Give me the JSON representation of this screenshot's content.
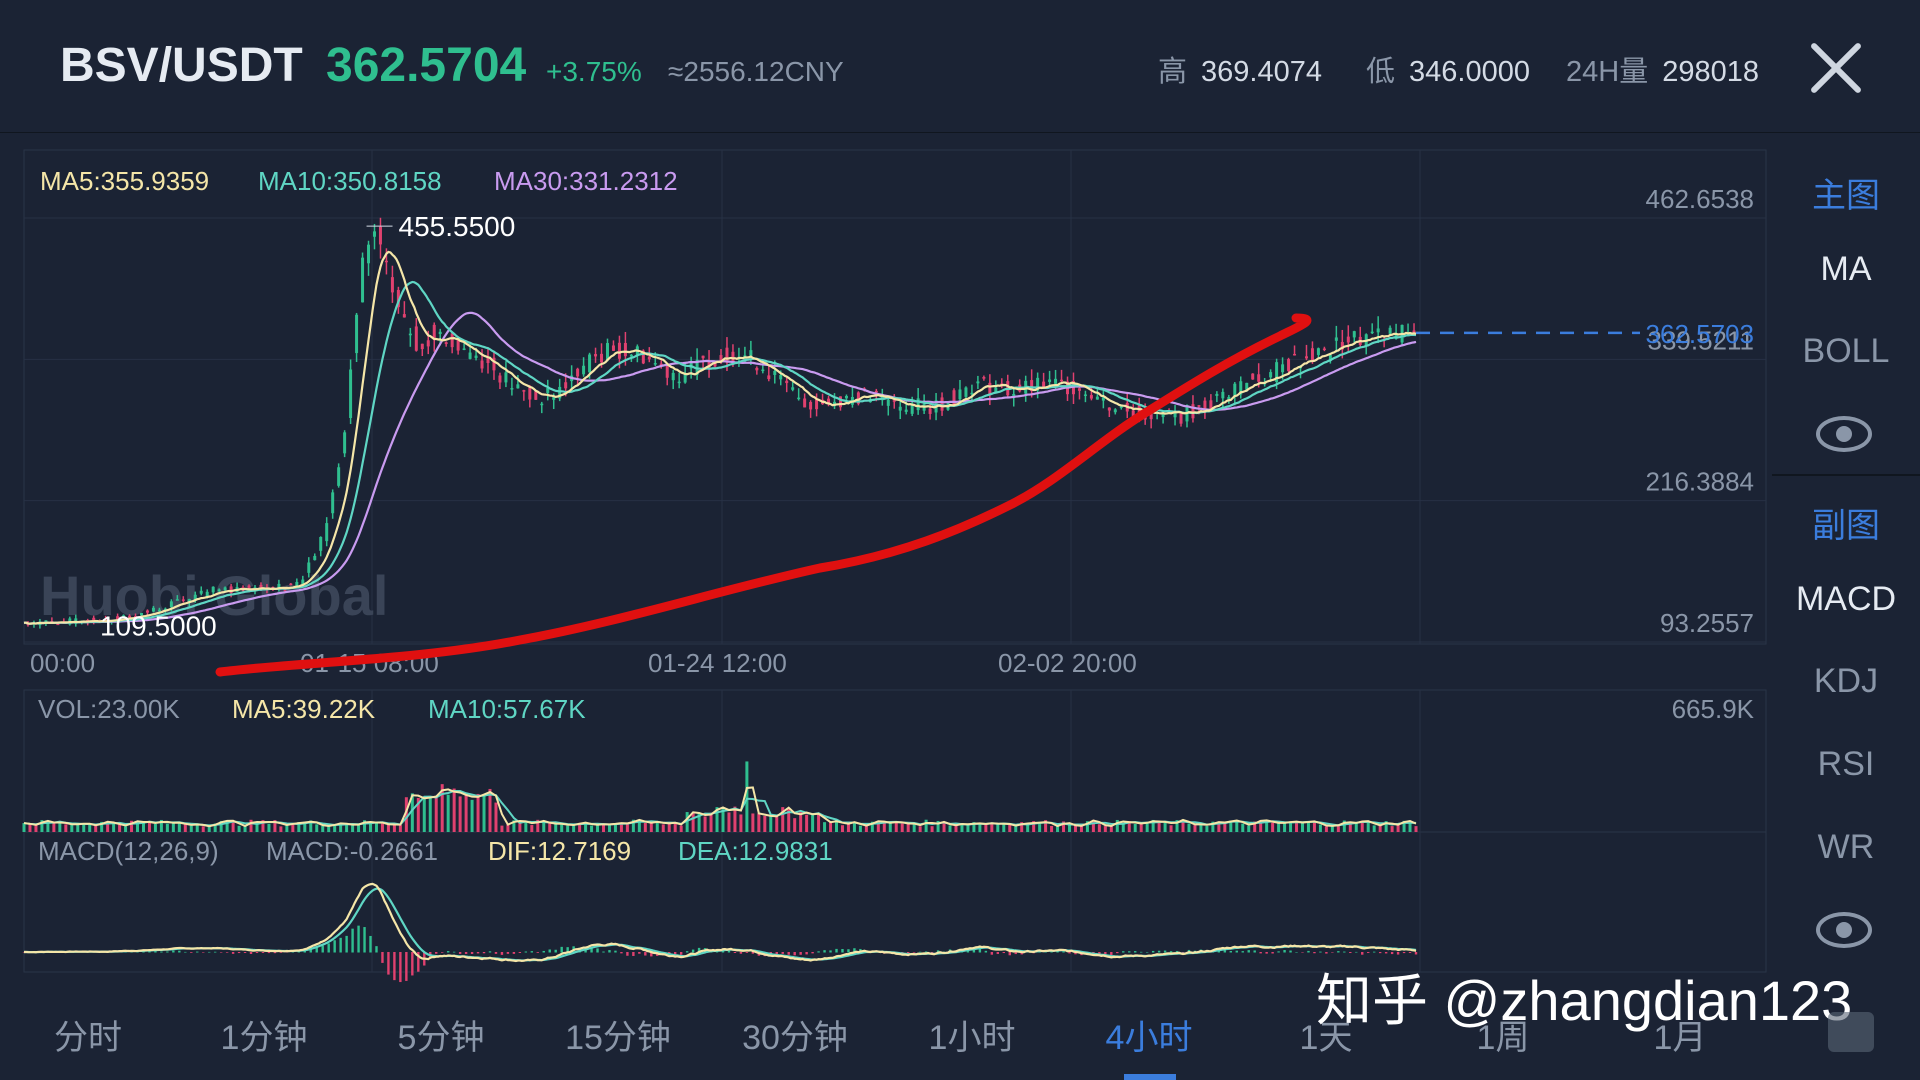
{
  "header": {
    "pair": "BSV/USDT",
    "price": "362.5704",
    "change": "+3.75%",
    "cny": "≈2556.12CNY",
    "high_label": "高",
    "high": "369.4074",
    "low_label": "低",
    "low": "346.0000",
    "vol_label": "24H量",
    "vol": "298018",
    "close_icon": "close-icon"
  },
  "colors": {
    "up": "#2fbf8f",
    "down": "#e0416f",
    "ma5": "#f5e6a8",
    "ma10": "#5fd6c4",
    "ma30": "#c99bf0",
    "accent": "#3b7ddd",
    "annotation": "#e01010"
  },
  "sidebar": {
    "main_header": "主图",
    "main_items": [
      "MA",
      "BOLL"
    ],
    "sub_header": "副图",
    "sub_items": [
      "MACD",
      "KDJ",
      "RSI",
      "WR"
    ],
    "eye_icon": "eye-icon"
  },
  "timeframes": [
    "分时",
    "1分钟",
    "5分钟",
    "15分钟",
    "30分钟",
    "1小时",
    "4小时",
    "1天",
    "1周",
    "1月"
  ],
  "active_timeframe": "4小时",
  "watermark": "知乎 @zhangdian123",
  "chart_data": [
    {
      "type": "candlestick",
      "legend": [
        {
          "label": "MA5:355.9359",
          "color": "#f5e6a8"
        },
        {
          "label": "MA10:350.8158",
          "color": "#5fd6c4"
        },
        {
          "label": "MA30:331.2312",
          "color": "#c99bf0"
        }
      ],
      "y_ticks": [
        "462.6538",
        "339.5211",
        "216.3884",
        "93.2557"
      ],
      "y_tick_values": [
        462.6538,
        339.5211,
        216.3884,
        93.2557
      ],
      "x_ticks": [
        "00:00",
        "01-15 08:00",
        "01-24 12:00",
        "02-02 20:00"
      ],
      "last_price": "362.5703",
      "max_label": "455.5500",
      "min_label": "109.5000",
      "brand": "Huobi Global",
      "close_path": [
        [
          0,
          110
        ],
        [
          40,
          112
        ],
        [
          60,
          118
        ],
        [
          80,
          130
        ],
        [
          95,
          138
        ],
        [
          110,
          140
        ],
        [
          130,
          142
        ],
        [
          140,
          148
        ],
        [
          150,
          185
        ],
        [
          160,
          260
        ],
        [
          165,
          345
        ],
        [
          170,
          420
        ],
        [
          176,
          450
        ],
        [
          182,
          415
        ],
        [
          190,
          375
        ],
        [
          198,
          350
        ],
        [
          206,
          365
        ],
        [
          215,
          352
        ],
        [
          225,
          345
        ],
        [
          235,
          333
        ],
        [
          245,
          318
        ],
        [
          255,
          305
        ],
        [
          265,
          308
        ],
        [
          275,
          322
        ],
        [
          285,
          340
        ],
        [
          295,
          348
        ],
        [
          310,
          345
        ],
        [
          320,
          332
        ],
        [
          330,
          326
        ],
        [
          345,
          340
        ],
        [
          360,
          345
        ],
        [
          370,
          335
        ],
        [
          385,
          312
        ],
        [
          395,
          300
        ],
        [
          405,
          302
        ],
        [
          415,
          308
        ],
        [
          430,
          305
        ],
        [
          440,
          300
        ],
        [
          455,
          298
        ],
        [
          465,
          305
        ],
        [
          475,
          318
        ],
        [
          485,
          316
        ],
        [
          495,
          312
        ],
        [
          510,
          316
        ],
        [
          520,
          318
        ],
        [
          535,
          312
        ],
        [
          545,
          300
        ],
        [
          555,
          295
        ],
        [
          565,
          292
        ],
        [
          580,
          290
        ],
        [
          595,
          300
        ],
        [
          610,
          318
        ],
        [
          625,
          326
        ],
        [
          640,
          340
        ],
        [
          655,
          346
        ],
        [
          665,
          357
        ],
        [
          680,
          360
        ],
        [
          700,
          363
        ]
      ]
    },
    {
      "type": "bar",
      "legend": [
        {
          "label": "VOL:23.00K",
          "color": "#8a96a8"
        },
        {
          "label": "MA5:39.22K",
          "color": "#f5e6a8"
        },
        {
          "label": "MA10:57.67K",
          "color": "#5fd6c4"
        }
      ],
      "y_max_label": "665.9K"
    },
    {
      "type": "macd",
      "legend": [
        {
          "label": "MACD(12,26,9)",
          "color": "#8a96a8"
        },
        {
          "label": "MACD:-0.2661",
          "color": "#8a96a8"
        },
        {
          "label": "DIF:12.7169",
          "color": "#f5e6a8"
        },
        {
          "label": "DEA:12.9831",
          "color": "#5fd6c4"
        }
      ]
    }
  ]
}
